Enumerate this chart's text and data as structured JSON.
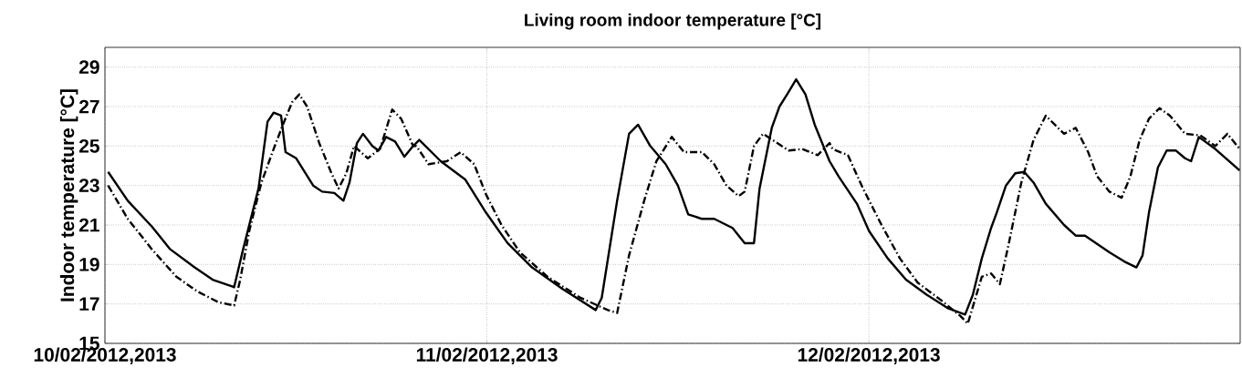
{
  "chart_data": {
    "type": "line",
    "title": "Living room indoor temperature [°C]",
    "ylabel": "Indoor temperature [°C]",
    "xlim": [
      "2012-02-10T00:00",
      "2012-02-12T23:20"
    ],
    "ylim": [
      15,
      30
    ],
    "xticks": [
      {
        "value": "2012-02-10",
        "label": "10/02/2012,2013"
      },
      {
        "value": "2012-02-11",
        "label": "11/02/2012,2013"
      },
      {
        "value": "2012-02-12",
        "label": "12/02/2012,2013"
      }
    ],
    "yticks": [
      15,
      17,
      19,
      21,
      23,
      25,
      27,
      29
    ],
    "grid": true,
    "series": [
      {
        "color": "#000000",
        "line_style": "solid",
        "x": [
          "2012-02-10T00:12",
          "2012-02-10T01:26",
          "2012-02-10T02:57",
          "2012-02-10T04:06",
          "2012-02-10T05:38",
          "2012-02-10T06:46",
          "2012-02-10T08:07",
          "2012-02-10T08:41",
          "2012-02-10T09:39",
          "2012-02-10T10:13",
          "2012-02-10T10:36",
          "2012-02-10T11:04",
          "2012-02-10T11:21",
          "2012-02-10T12:01",
          "2012-02-10T13:05",
          "2012-02-10T13:39",
          "2012-02-10T14:25",
          "2012-02-10T14:59",
          "2012-02-10T15:22",
          "2012-02-10T15:50",
          "2012-02-10T16:13",
          "2012-02-10T16:48",
          "2012-02-10T17:11",
          "2012-02-10T17:40",
          "2012-02-10T18:14",
          "2012-02-10T18:49",
          "2012-02-10T19:22",
          "2012-02-10T19:45",
          "2012-02-10T21:06",
          "2012-02-10T22:38",
          "2012-02-10T23:57",
          "2012-02-11T01:18",
          "2012-02-11T02:50",
          "2012-02-11T04:44",
          "2012-02-11T06:50",
          "2012-02-11T07:13",
          "2012-02-11T08:11",
          "2012-02-11T08:56",
          "2012-02-11T09:30",
          "2012-02-11T10:16",
          "2012-02-11T11:14",
          "2012-02-11T12:00",
          "2012-02-11T12:39",
          "2012-02-11T13:31",
          "2012-02-11T14:17",
          "2012-02-11T15:26",
          "2012-02-11T16:12",
          "2012-02-11T16:47",
          "2012-02-11T17:08",
          "2012-02-11T17:54",
          "2012-02-11T18:23",
          "2012-02-11T18:52",
          "2012-02-11T19:26",
          "2012-02-11T20:01",
          "2012-02-11T20:36",
          "2012-02-11T21:32",
          "2012-02-11T22:06",
          "2012-02-11T23:15",
          "2012-02-12T00:01",
          "2012-02-12T01:11",
          "2012-02-12T02:20",
          "2012-02-12T03:39",
          "2012-02-12T05:00",
          "2012-02-12T06:03",
          "2012-02-12T06:32",
          "2012-02-12T07:06",
          "2012-02-12T07:41",
          "2012-02-12T08:02",
          "2012-02-12T08:37",
          "2012-02-12T09:12",
          "2012-02-12T09:46",
          "2012-02-12T10:21",
          "2012-02-12T11:07",
          "2012-02-12T12:16",
          "2012-02-12T13:00",
          "2012-02-12T13:35",
          "2012-02-12T15:07",
          "2012-02-12T16:03",
          "2012-02-12T16:49",
          "2012-02-12T17:12",
          "2012-02-12T17:36",
          "2012-02-12T18:10",
          "2012-02-12T18:43",
          "2012-02-12T19:18",
          "2012-02-12T19:52",
          "2012-02-12T20:15",
          "2012-02-12T20:44",
          "2012-02-12T21:46",
          "2012-02-12T23:18"
        ],
        "values": [
          23.69,
          22.23,
          20.92,
          19.77,
          18.85,
          18.23,
          17.85,
          19.77,
          22.85,
          26.23,
          26.69,
          26.54,
          24.69,
          24.38,
          23.0,
          22.69,
          22.62,
          22.23,
          23.15,
          25.15,
          25.62,
          25.0,
          24.77,
          25.46,
          25.23,
          24.46,
          25.0,
          25.31,
          24.23,
          23.31,
          21.62,
          20.08,
          18.85,
          17.77,
          16.69,
          17.31,
          22.23,
          25.62,
          26.08,
          25.0,
          24.08,
          23.0,
          21.54,
          21.31,
          21.31,
          20.85,
          20.08,
          20.08,
          22.85,
          25.92,
          27.0,
          27.62,
          28.38,
          27.62,
          26.08,
          24.23,
          23.46,
          22.08,
          20.69,
          19.31,
          18.23,
          17.46,
          16.77,
          16.46,
          17.46,
          19.31,
          20.85,
          21.62,
          23.0,
          23.62,
          23.69,
          23.15,
          22.08,
          21.0,
          20.46,
          20.46,
          19.62,
          19.15,
          18.85,
          19.46,
          21.62,
          23.92,
          24.77,
          24.77,
          24.38,
          24.23,
          25.46,
          24.85,
          23.77
        ]
      },
      {
        "color": "#000000",
        "line_style": "dashed",
        "x": [
          "2012-02-10T00:12",
          "2012-02-10T01:26",
          "2012-02-10T02:57",
          "2012-02-10T04:29",
          "2012-02-10T05:50",
          "2012-02-10T07:09",
          "2012-02-10T08:07",
          "2012-02-10T08:30",
          "2012-02-10T09:04",
          "2012-02-10T09:50",
          "2012-02-10T10:36",
          "2012-02-10T11:11",
          "2012-02-10T11:46",
          "2012-02-10T12:13",
          "2012-02-10T12:42",
          "2012-02-10T13:28",
          "2012-02-10T14:14",
          "2012-02-10T14:41",
          "2012-02-10T15:10",
          "2012-02-10T15:39",
          "2012-02-10T16:31",
          "2012-02-10T17:17",
          "2012-02-10T18:03",
          "2012-02-10T18:37",
          "2012-02-10T19:22",
          "2012-02-10T19:34",
          "2012-02-10T20:20",
          "2012-02-10T21:29",
          "2012-02-10T22:21",
          "2012-02-10T23:12",
          "2012-02-10T23:57",
          "2012-02-11T00:55",
          "2012-02-11T02:04",
          "2012-02-11T03:48",
          "2012-02-11T05:53",
          "2012-02-11T07:36",
          "2012-02-11T08:11",
          "2012-02-11T08:56",
          "2012-02-11T09:53",
          "2012-02-11T10:39",
          "2012-02-11T11:37",
          "2012-02-11T12:23",
          "2012-02-11T13:31",
          "2012-02-11T14:17",
          "2012-02-11T15:03",
          "2012-02-11T15:49",
          "2012-02-11T16:12",
          "2012-02-11T16:47",
          "2012-02-11T17:21",
          "2012-02-11T18:06",
          "2012-02-11T18:58",
          "2012-02-11T19:49",
          "2012-02-11T20:47",
          "2012-02-11T21:32",
          "2012-02-11T21:43",
          "2012-02-11T22:41",
          "2012-02-11T23:38",
          "2012-02-12T00:48",
          "2012-02-12T01:57",
          "2012-02-12T03:04",
          "2012-02-12T04:36",
          "2012-02-12T05:46",
          "2012-02-12T06:13",
          "2012-02-12T06:32",
          "2012-02-12T07:06",
          "2012-02-12T07:41",
          "2012-02-12T08:14",
          "2012-02-12T08:48",
          "2012-02-12T09:35",
          "2012-02-12T10:21",
          "2012-02-12T11:07",
          "2012-02-12T12:16",
          "2012-02-12T13:00",
          "2012-02-12T13:47",
          "2012-02-12T14:21",
          "2012-02-12T15:07",
          "2012-02-12T15:53",
          "2012-02-12T16:26",
          "2012-02-12T17:01",
          "2012-02-12T17:36",
          "2012-02-12T18:16",
          "2012-02-12T18:55",
          "2012-02-12T19:52",
          "2012-02-12T20:50",
          "2012-02-12T21:46",
          "2012-02-12T22:32",
          "2012-02-12T23:18"
        ],
        "values": [
          23.0,
          21.31,
          19.77,
          18.38,
          17.62,
          17.08,
          16.92,
          18.23,
          20.69,
          23.15,
          24.85,
          26.08,
          27.23,
          27.62,
          27.0,
          25.15,
          23.62,
          22.85,
          23.62,
          25.0,
          24.38,
          24.85,
          26.85,
          26.38,
          25.0,
          25.0,
          24.08,
          24.23,
          24.69,
          24.08,
          22.54,
          21.0,
          19.62,
          18.38,
          17.31,
          16.69,
          16.54,
          19.46,
          22.23,
          24.23,
          25.46,
          24.69,
          24.69,
          24.08,
          23.0,
          22.46,
          22.69,
          25.0,
          25.62,
          25.23,
          24.77,
          24.85,
          24.54,
          25.15,
          24.85,
          24.54,
          22.85,
          21.0,
          19.31,
          18.08,
          17.15,
          16.38,
          16.0,
          16.85,
          18.38,
          18.54,
          18.0,
          20.08,
          23.15,
          25.31,
          26.54,
          25.62,
          25.92,
          24.69,
          23.46,
          22.69,
          22.38,
          23.46,
          25.31,
          26.38,
          26.92,
          26.54,
          25.62,
          25.54,
          25.0,
          25.62,
          24.85
        ]
      }
    ]
  }
}
